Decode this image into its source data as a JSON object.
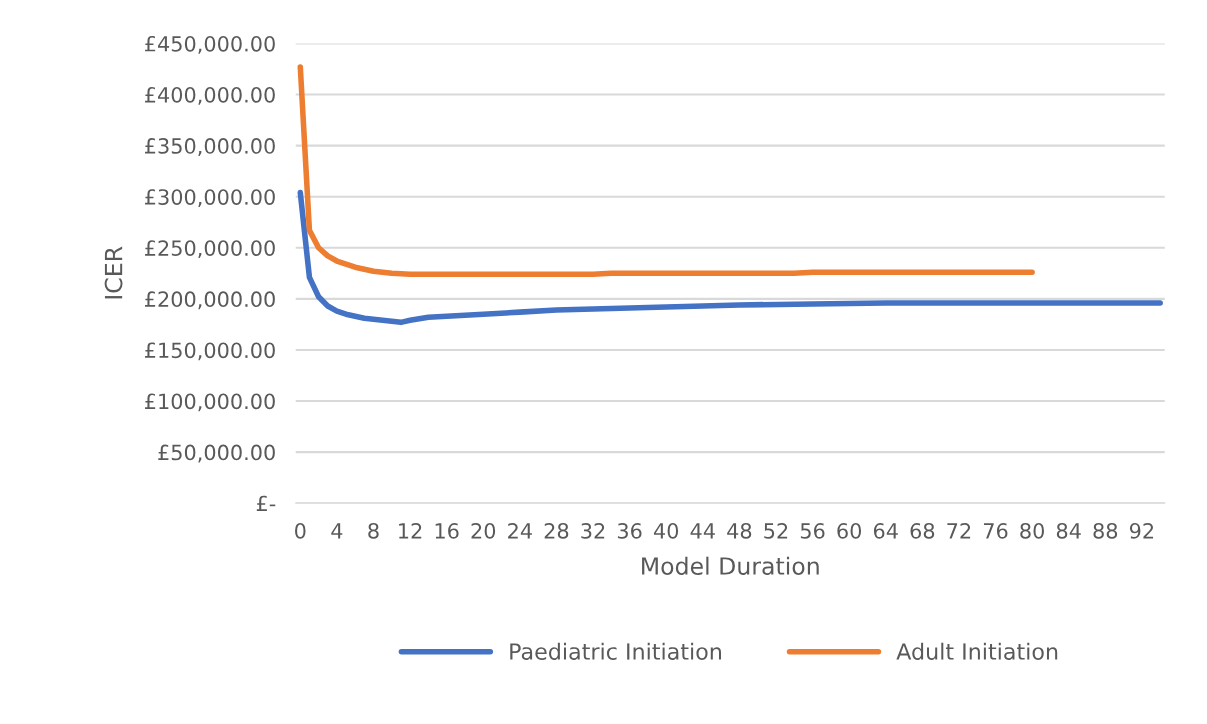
{
  "chart_data": {
    "type": "line",
    "xlabel": "Model Duration",
    "ylabel": "ICER",
    "xlim": [
      -0.5,
      94.5
    ],
    "xticks": [
      0,
      4,
      8,
      12,
      16,
      20,
      24,
      28,
      32,
      36,
      40,
      44,
      48,
      52,
      56,
      60,
      64,
      68,
      72,
      76,
      80,
      84,
      88,
      92
    ],
    "ylim": [
      0,
      450000
    ],
    "yticks": [
      {
        "value": 0,
        "label": "£-"
      },
      {
        "value": 50000,
        "label": "£50,000.00"
      },
      {
        "value": 100000,
        "label": "£100,000.00"
      },
      {
        "value": 150000,
        "label": "£150,000.00"
      },
      {
        "value": 200000,
        "label": "£200,000.00"
      },
      {
        "value": 250000,
        "label": "£250,000.00"
      },
      {
        "value": 300000,
        "label": "£300,000.00"
      },
      {
        "value": 350000,
        "label": "£350,000.00"
      },
      {
        "value": 400000,
        "label": "£400,000.00"
      },
      {
        "value": 450000,
        "label": "£450,000.00"
      }
    ],
    "grid": "y",
    "legend": "bottom",
    "marker": "none",
    "line_style": "solid",
    "series": [
      {
        "name": "Paediatric Initiation",
        "color": "#4472c4",
        "x": [
          0,
          1,
          2,
          3,
          4,
          5,
          6,
          7,
          8,
          9,
          10,
          11,
          12,
          14,
          16,
          20,
          24,
          28,
          32,
          40,
          48,
          56,
          64,
          80,
          94
        ],
        "values": [
          304000,
          221000,
          202000,
          193000,
          188000,
          185000,
          183000,
          181000,
          180000,
          179000,
          178000,
          177000,
          179000,
          182000,
          183000,
          185000,
          187000,
          189000,
          190000,
          192000,
          194000,
          195000,
          196000,
          196000,
          196000
        ]
      },
      {
        "name": "Adult Initiation",
        "color": "#ed7d31",
        "x": [
          0,
          1,
          2,
          3,
          4,
          5,
          6,
          7,
          8,
          9,
          10,
          12,
          20,
          32,
          34,
          54,
          56,
          80
        ],
        "values": [
          427000,
          267000,
          250000,
          242000,
          237000,
          234000,
          231000,
          229000,
          227000,
          226000,
          225000,
          224000,
          224000,
          224000,
          225000,
          225000,
          226000,
          226000
        ]
      }
    ]
  }
}
